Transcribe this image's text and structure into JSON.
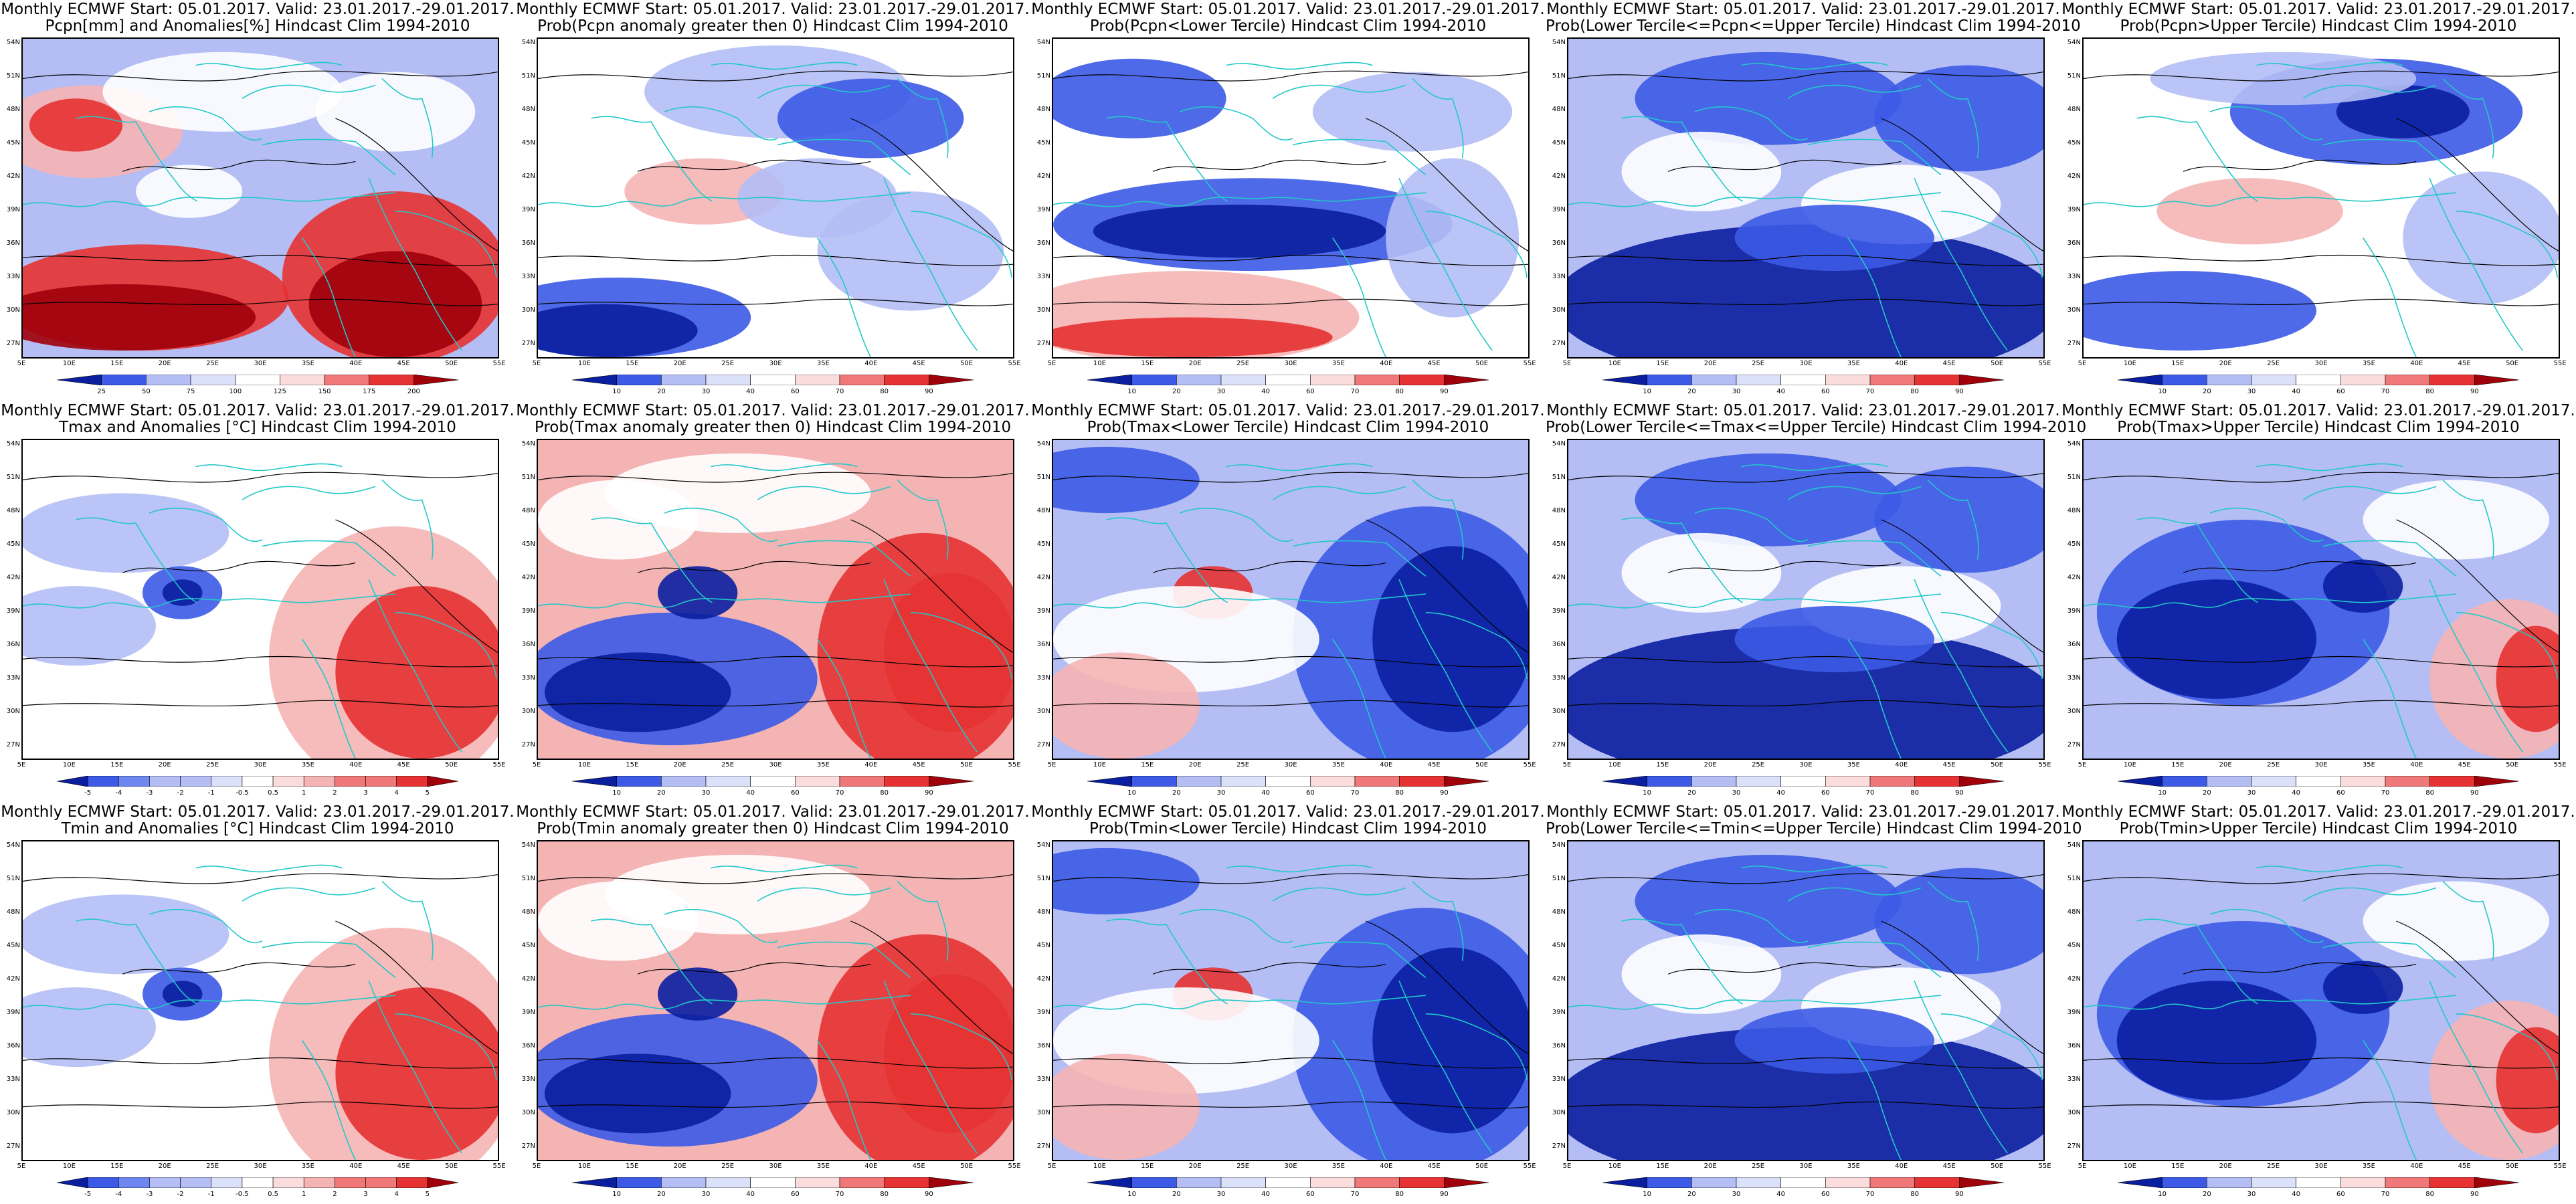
{
  "map_extent": {
    "lon_range": [
      5,
      55
    ],
    "lat_range": [
      25,
      55
    ]
  },
  "lat_labels": [
    "54N",
    "51N",
    "48N",
    "45N",
    "42N",
    "39N",
    "36N",
    "33N",
    "30N",
    "27N"
  ],
  "lon_labels": [
    "5E",
    "10E",
    "15E",
    "20E",
    "25E",
    "30E",
    "35E",
    "40E",
    "45E",
    "50E",
    "55E"
  ],
  "colors": {
    "coastline": "#22c8c8",
    "contour": "#000000",
    "deep_blue": "#0a1ea0",
    "blue": "#3c5ae6",
    "light_blue": "#b4bef5",
    "white": "#ffffff",
    "light_red": "#f5b4b4",
    "red": "#e63232",
    "deep_red": "#a0000a"
  },
  "colorbars": {
    "pcpn_anom": [
      "25",
      "50",
      "75",
      "100",
      "125",
      "150",
      "175",
      "200"
    ],
    "prob": [
      "10",
      "20",
      "30",
      "40",
      "60",
      "70",
      "80",
      "90"
    ],
    "temp_anom": [
      "-5",
      "-4",
      "-3",
      "-2",
      "-1",
      "-0.5",
      "0.5",
      "1",
      "2",
      "3",
      "4",
      "5"
    ]
  },
  "panels": [
    {
      "title1": "Monthly ECMWF Start: 05.01.2017. Valid: 23.01.2017.-29.01.2017.",
      "title2": "Pcpn[mm] and Anomalies[%] Hindcast Clim 1994-2010",
      "colorbar": "pcpn_anom",
      "pattern": "pcpn"
    },
    {
      "title1": "Monthly ECMWF Start: 05.01.2017. Valid: 23.01.2017.-29.01.2017.",
      "title2": "Prob(Pcpn anomaly greater then 0) Hindcast Clim 1994-2010",
      "colorbar": "prob",
      "pattern": "pcpn_prob"
    },
    {
      "title1": "Monthly ECMWF Start: 05.01.2017. Valid: 23.01.2017.-29.01.2017.",
      "title2": "Prob(Pcpn<Lower Tercile) Hindcast Clim 1994-2010",
      "colorbar": "prob",
      "pattern": "pcpn_lower"
    },
    {
      "title1": "Monthly ECMWF Start: 05.01.2017. Valid: 23.01.2017.-29.01.2017.",
      "title2": "Prob(Lower Tercile<=Pcpn<=Upper Tercile) Hindcast Clim 1994-2010",
      "colorbar": "prob",
      "pattern": "middle"
    },
    {
      "title1": "Monthly ECMWF Start: 05.01.2017. Valid: 23.01.2017.-29.01.2017.",
      "title2": "Prob(Pcpn>Upper Tercile) Hindcast Clim 1994-2010",
      "colorbar": "prob",
      "pattern": "pcpn_upper"
    },
    {
      "title1": "Monthly ECMWF Start: 05.01.2017. Valid: 23.01.2017.-29.01.2017.",
      "title2": "Tmax and Anomalies [°C] Hindcast Clim 1994-2010",
      "colorbar": "temp_anom",
      "pattern": "temp"
    },
    {
      "title1": "Monthly ECMWF Start: 05.01.2017. Valid: 23.01.2017.-29.01.2017.",
      "title2": "Prob(Tmax anomaly greater then 0) Hindcast Clim 1994-2010",
      "colorbar": "prob",
      "pattern": "temp_prob"
    },
    {
      "title1": "Monthly ECMWF Start: 05.01.2017. Valid: 23.01.2017.-29.01.2017.",
      "title2": "Prob(Tmax<Lower Tercile) Hindcast Clim 1994-2010",
      "colorbar": "prob",
      "pattern": "temp_lower"
    },
    {
      "title1": "Monthly ECMWF Start: 05.01.2017. Valid: 23.01.2017.-29.01.2017.",
      "title2": "Prob(Lower Tercile<=Tmax<=Upper Tercile) Hindcast Clim 1994-2010",
      "colorbar": "prob",
      "pattern": "middle"
    },
    {
      "title1": "Monthly ECMWF Start: 05.01.2017. Valid: 23.01.2017.-29.01.2017.",
      "title2": "Prob(Tmax>Upper Tercile) Hindcast Clim 1994-2010",
      "colorbar": "prob",
      "pattern": "temp_upper"
    },
    {
      "title1": "Monthly ECMWF Start: 05.01.2017. Valid: 23.01.2017.-29.01.2017.",
      "title2": "Tmin and Anomalies [°C] Hindcast Clim 1994-2010",
      "colorbar": "temp_anom",
      "pattern": "temp"
    },
    {
      "title1": "Monthly ECMWF Start: 05.01.2017. Valid: 23.01.2017.-29.01.2017.",
      "title2": "Prob(Tmin anomaly greater then 0) Hindcast Clim 1994-2010",
      "colorbar": "prob",
      "pattern": "temp_prob"
    },
    {
      "title1": "Monthly ECMWF Start: 05.01.2017. Valid: 23.01.2017.-29.01.2017.",
      "title2": "Prob(Tmin<Lower Tercile) Hindcast Clim 1994-2010",
      "colorbar": "prob",
      "pattern": "temp_lower"
    },
    {
      "title1": "Monthly ECMWF Start: 05.01.2017. Valid: 23.01.2017.-29.01.2017.",
      "title2": "Prob(Lower Tercile<=Tmin<=Upper Tercile) Hindcast Clim 1994-2010",
      "colorbar": "prob",
      "pattern": "middle"
    },
    {
      "title1": "Monthly ECMWF Start: 05.01.2017. Valid: 23.01.2017.-29.01.2017.",
      "title2": "Prob(Tmin>Upper Tercile) Hindcast Clim 1994-2010",
      "colorbar": "prob",
      "pattern": "temp_upper"
    }
  ]
}
